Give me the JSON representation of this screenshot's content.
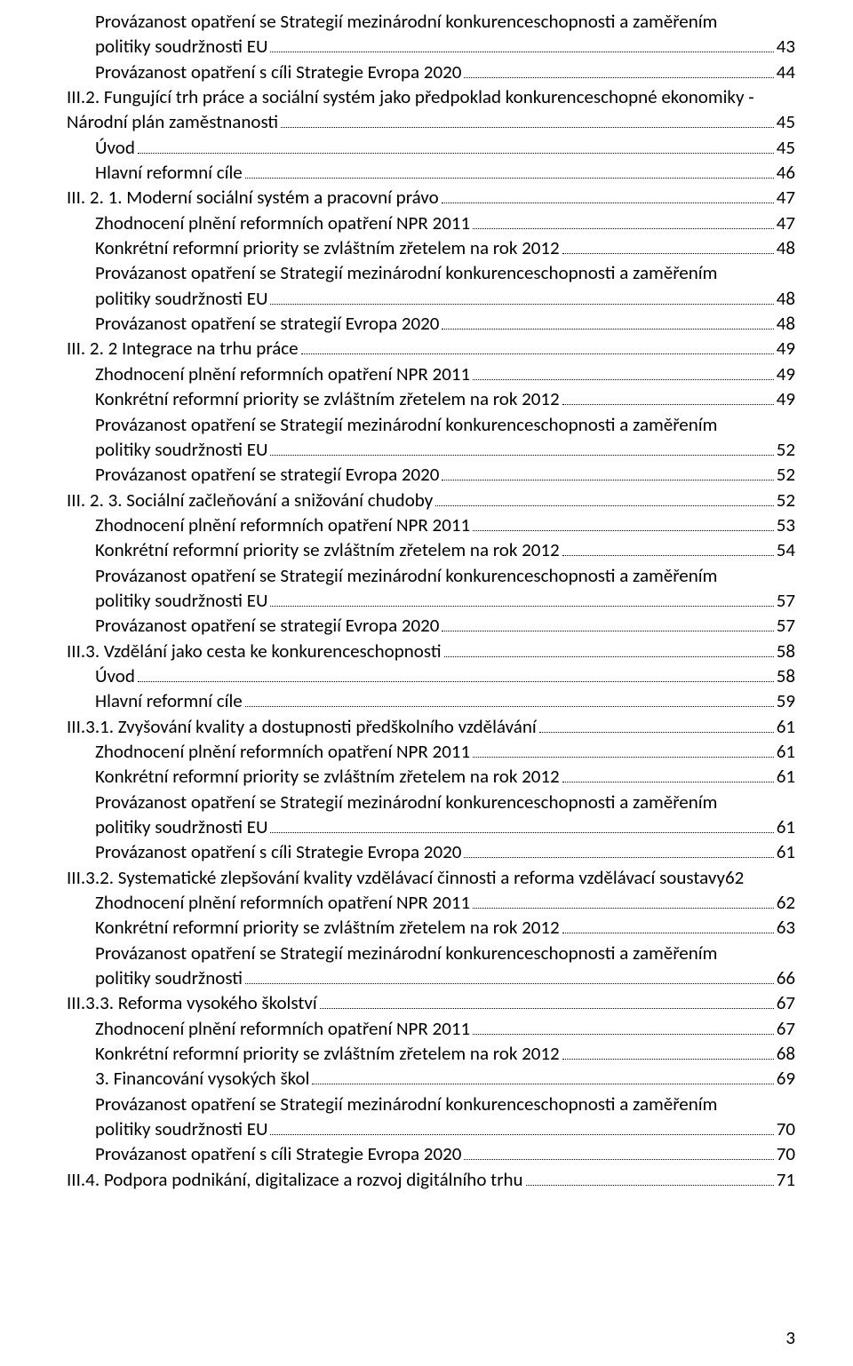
{
  "page_number": "3",
  "entries": [
    {
      "indent": 1,
      "wrap": true,
      "lines": [
        "Provázanost opatření se Strategií mezinárodní konkurenceschopnosti a zaměřením",
        "politiky soudržnosti EU"
      ],
      "page": "43"
    },
    {
      "indent": 1,
      "lines": [
        "Provázanost opatření s cíli Strategie Evropa 2020"
      ],
      "page": "44"
    },
    {
      "indent": 0,
      "wrap": true,
      "lines": [
        "III.2.   Fungující trh práce a sociální systém jako předpoklad konkurenceschopné ekonomiky -",
        "Národní plán zaměstnanosti"
      ],
      "page": "45"
    },
    {
      "indent": 1,
      "lines": [
        "Úvod"
      ],
      "page": "45"
    },
    {
      "indent": 1,
      "lines": [
        "Hlavní reformní cíle"
      ],
      "page": "46"
    },
    {
      "indent": 0,
      "lines": [
        "III. 2. 1.      Moderní sociální systém a pracovní právo"
      ],
      "page": "47"
    },
    {
      "indent": 1,
      "lines": [
        "Zhodnocení plnění reformních opatření NPR 2011"
      ],
      "page": "47"
    },
    {
      "indent": 1,
      "lines": [
        "Konkrétní reformní priority se zvláštním zřetelem na rok 2012"
      ],
      "page": "48"
    },
    {
      "indent": 1,
      "wrap": true,
      "lines": [
        "Provázanost opatření se Strategií mezinárodní konkurenceschopnosti a zaměřením",
        "politiky soudržnosti EU"
      ],
      "page": "48"
    },
    {
      "indent": 1,
      "lines": [
        "Provázanost opatření se strategií Evropa 2020"
      ],
      "page": "48"
    },
    {
      "indent": 0,
      "lines": [
        "III. 2. 2       Integrace na trhu práce"
      ],
      "page": "49"
    },
    {
      "indent": 1,
      "lines": [
        "Zhodnocení plnění reformních opatření NPR 2011"
      ],
      "page": "49"
    },
    {
      "indent": 1,
      "lines": [
        "Konkrétní reformní priority se zvláštním zřetelem na rok 2012"
      ],
      "page": "49"
    },
    {
      "indent": 1,
      "wrap": true,
      "lines": [
        "Provázanost opatření se Strategií mezinárodní konkurenceschopnosti a zaměřením",
        "politiky soudržnosti EU"
      ],
      "page": "52"
    },
    {
      "indent": 1,
      "lines": [
        "Provázanost opatření se strategií Evropa 2020"
      ],
      "page": "52"
    },
    {
      "indent": 0,
      "lines": [
        "III. 2. 3.      Sociální začleňování a snižování chudoby"
      ],
      "page": "52"
    },
    {
      "indent": 1,
      "lines": [
        "Zhodnocení plnění reformních opatření NPR 2011"
      ],
      "page": "53"
    },
    {
      "indent": 1,
      "lines": [
        "Konkrétní reformní priority se zvláštním zřetelem na rok 2012"
      ],
      "page": "54"
    },
    {
      "indent": 1,
      "wrap": true,
      "lines": [
        "Provázanost opatření se Strategií mezinárodní konkurenceschopnosti a zaměřením",
        "politiky soudržnosti EU"
      ],
      "page": "57"
    },
    {
      "indent": 1,
      "lines": [
        "Provázanost opatření se strategií Evropa 2020"
      ],
      "page": "57"
    },
    {
      "indent": 0,
      "lines": [
        "III.3. Vzdělání jako cesta ke konkurenceschopnosti"
      ],
      "page": "58"
    },
    {
      "indent": 1,
      "lines": [
        "Úvod"
      ],
      "page": "58"
    },
    {
      "indent": 1,
      "lines": [
        "Hlavní reformní cíle"
      ],
      "page": "59"
    },
    {
      "indent": 0,
      "lines": [
        "III.3.1. Zvyšování kvality a dostupnosti předškolního vzdělávání"
      ],
      "page": "61"
    },
    {
      "indent": 1,
      "lines": [
        "Zhodnocení plnění reformních opatření NPR 2011"
      ],
      "page": "61"
    },
    {
      "indent": 1,
      "lines": [
        "Konkrétní reformní priority se zvláštním zřetelem na rok 2012"
      ],
      "page": "61"
    },
    {
      "indent": 1,
      "wrap": true,
      "lines": [
        "Provázanost opatření se Strategií mezinárodní konkurenceschopnosti a zaměřením",
        "politiky soudržnosti EU"
      ],
      "page": "61"
    },
    {
      "indent": 1,
      "lines": [
        "Provázanost opatření s cíli Strategie Evropa 2020"
      ],
      "page": "61"
    },
    {
      "indent": 0,
      "lines": [
        "III.3.2. Systematické zlepšování kvality vzdělávací činnosti a reforma vzdělávací soustavy"
      ],
      "page": "62",
      "no_leader": true
    },
    {
      "indent": 1,
      "lines": [
        "Zhodnocení plnění reformních opatření NPR 2011"
      ],
      "page": "62"
    },
    {
      "indent": 1,
      "lines": [
        "Konkrétní reformní priority se zvláštním zřetelem na rok 2012"
      ],
      "page": "63"
    },
    {
      "indent": 1,
      "wrap": true,
      "lines": [
        "Provázanost opatření se Strategií mezinárodní konkurenceschopnosti a zaměřením",
        "politiky soudržnosti"
      ],
      "page": "66"
    },
    {
      "indent": 0,
      "lines": [
        "III.3.3. Reforma vysokého školství"
      ],
      "page": "67"
    },
    {
      "indent": 1,
      "lines": [
        "Zhodnocení plnění reformních opatření NPR 2011"
      ],
      "page": "67"
    },
    {
      "indent": 1,
      "lines": [
        "Konkrétní reformní priority se zvláštním zřetelem na rok 2012"
      ],
      "page": "68"
    },
    {
      "indent": 1,
      "lines": [
        "3. Financování vysokých škol"
      ],
      "page": "69"
    },
    {
      "indent": 1,
      "wrap": true,
      "lines": [
        "Provázanost opatření se Strategií mezinárodní konkurenceschopnosti a zaměřením",
        "politiky soudržnosti EU"
      ],
      "page": "70"
    },
    {
      "indent": 1,
      "lines": [
        "Provázanost opatření s cíli Strategie Evropa 2020"
      ],
      "page": "70"
    },
    {
      "indent": 0,
      "lines": [
        "III.4. Podpora podnikání, digitalizace a rozvoj digitálního trhu"
      ],
      "page": "71"
    }
  ]
}
